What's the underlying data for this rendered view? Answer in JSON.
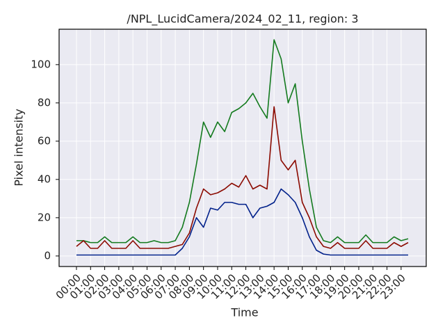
{
  "chart_data": {
    "type": "line",
    "title": "/NPL_LucidCamera/2024_02_11, region: 3",
    "x_label": "Time",
    "y_label": "Pixel intensity",
    "x": [
      0,
      0.5,
      1,
      1.5,
      2,
      2.5,
      3,
      3.5,
      4,
      4.5,
      5,
      5.5,
      6,
      6.5,
      7,
      7.5,
      8,
      8.5,
      9,
      9.5,
      10,
      10.5,
      11,
      11.5,
      12,
      12.5,
      13,
      13.5,
      14,
      14.5,
      15,
      15.5,
      16,
      16.5,
      17,
      17.5,
      18,
      18.5,
      19,
      19.5,
      20,
      20.5,
      21,
      21.5,
      22,
      22.5,
      23,
      23.5
    ],
    "series": [
      {
        "color": "#137a1e",
        "values": [
          8,
          8,
          7,
          7,
          10,
          7,
          7,
          7,
          10,
          7,
          7,
          8,
          7,
          7,
          8,
          15,
          28,
          48,
          70,
          62,
          70,
          65,
          75,
          77,
          80,
          85,
          78,
          72,
          113,
          103,
          80,
          90,
          60,
          35,
          15,
          8,
          7,
          10,
          7,
          7,
          7,
          11,
          7,
          7,
          7,
          10,
          8,
          9
        ]
      },
      {
        "color": "#8b0a00",
        "values": [
          5,
          8,
          4,
          4,
          8,
          4,
          4,
          4,
          8,
          4,
          4,
          4,
          4,
          4,
          5,
          6,
          12,
          25,
          35,
          32,
          33,
          35,
          38,
          36,
          42,
          35,
          37,
          35,
          78,
          50,
          45,
          50,
          28,
          20,
          10,
          5,
          4,
          7,
          4,
          4,
          4,
          8,
          4,
          4,
          4,
          7,
          5,
          7
        ]
      },
      {
        "color": "#00208a",
        "values": [
          0.5,
          0.5,
          0.5,
          0.5,
          0.5,
          0.5,
          0.5,
          0.5,
          0.5,
          0.5,
          0.5,
          0.5,
          0.5,
          0.5,
          0.5,
          4,
          10,
          20,
          15,
          25,
          24,
          28,
          28,
          27,
          27,
          20,
          25,
          26,
          28,
          35,
          32,
          28,
          20,
          10,
          3,
          1,
          0.5,
          0.5,
          0.5,
          0.5,
          0.5,
          0.5,
          0.5,
          0.5,
          0.5,
          0.5,
          0.5,
          0.5
        ]
      }
    ],
    "xlim": [
      -1.23,
      24.78
    ],
    "xticks": [
      {
        "value": 0,
        "label": "00:00"
      },
      {
        "value": 1,
        "label": "01:00"
      },
      {
        "value": 2,
        "label": "02:00"
      },
      {
        "value": 3,
        "label": "03:00"
      },
      {
        "value": 4,
        "label": "04:00"
      },
      {
        "value": 5,
        "label": "05:00"
      },
      {
        "value": 6,
        "label": "06:00"
      },
      {
        "value": 7,
        "label": "07:00"
      },
      {
        "value": 8,
        "label": "08:00"
      },
      {
        "value": 9,
        "label": "09:00"
      },
      {
        "value": 10,
        "label": "10:00"
      },
      {
        "value": 11,
        "label": "11:00"
      },
      {
        "value": 12,
        "label": "12:00"
      },
      {
        "value": 13,
        "label": "13:00"
      },
      {
        "value": 14,
        "label": "14:00"
      },
      {
        "value": 15,
        "label": "15:00"
      },
      {
        "value": 16,
        "label": "16:00"
      },
      {
        "value": 17,
        "label": "17:00"
      },
      {
        "value": 18,
        "label": "18:00"
      },
      {
        "value": 19,
        "label": "19:00"
      },
      {
        "value": 20,
        "label": "20:00"
      },
      {
        "value": 21,
        "label": "21:00"
      },
      {
        "value": 22,
        "label": "22:00"
      },
      {
        "value": 23,
        "label": "23:00"
      }
    ],
    "ylim": [
      -5.5,
      118.5
    ],
    "yticks": [
      0,
      20,
      40,
      60,
      80,
      100
    ],
    "grid": true
  }
}
